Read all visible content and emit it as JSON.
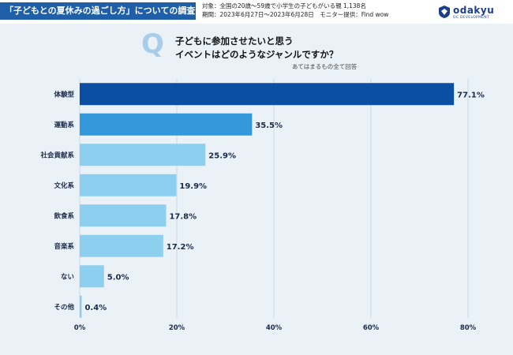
{
  "header": {
    "title": "「子どもとの夏休みの過ごし方」についての調査",
    "target": "対象：全国の20歳〜59歳で小学生の子どもがいる親 1,138名",
    "period": "期間：2023年6月27日〜2023年6月28日　モニター提供：Find wow"
  },
  "logo": {
    "name": "odakyu",
    "sub": "OC DEVELOPMENT"
  },
  "question": {
    "mark": "Q",
    "line1": "子どもに参加させたいと思う",
    "line2": "イベントはどのようなジャンルですか？",
    "note": "あてはまるもの全て回答"
  },
  "colors": {
    "top": "#0b4ea2",
    "second": "#3399da",
    "rest": "#8ccfee"
  },
  "chart_data": {
    "type": "bar",
    "orientation": "horizontal",
    "categories": [
      "体験型",
      "運動系",
      "社会貢献系",
      "文化系",
      "飲食系",
      "音楽系",
      "ない",
      "その他"
    ],
    "values": [
      77.1,
      35.5,
      25.9,
      19.9,
      17.8,
      17.2,
      5.0,
      0.4
    ],
    "value_labels": [
      "77.1%",
      "35.5%",
      "25.9%",
      "19.9%",
      "17.8%",
      "17.2%",
      "5.0%",
      "0.4%"
    ],
    "xlim": [
      0,
      80
    ],
    "xticks": [
      "0%",
      "20%",
      "40%",
      "60%",
      "80%"
    ],
    "xtick_values": [
      0,
      20,
      40,
      60,
      80
    ],
    "grid": true
  }
}
